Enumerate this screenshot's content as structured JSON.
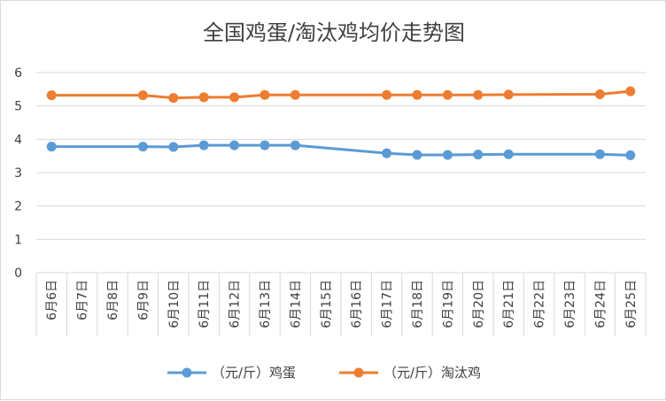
{
  "chart_data": {
    "type": "line",
    "title": "全国鸡蛋/淘汰鸡均价走势图",
    "xlabel": "",
    "ylabel": "",
    "categories": [
      "6月6日",
      "6月7日",
      "6月8日",
      "6月9日",
      "6月10日",
      "6月11日",
      "6月12日",
      "6月13日",
      "6月14日",
      "6月15日",
      "6月16日",
      "6月17日",
      "6月18日",
      "6月19日",
      "6月20日",
      "6月21日",
      "6月22日",
      "6月23日",
      "6月24日",
      "6月25日"
    ],
    "ylim": [
      0,
      6
    ],
    "yticks": [
      0,
      1,
      2,
      3,
      4,
      5,
      6
    ],
    "grid": true,
    "legend_position": "bottom",
    "series": [
      {
        "name": "（元/斤）鸡蛋",
        "color": "#5b9bd5",
        "values": [
          3.78,
          null,
          null,
          3.78,
          3.77,
          3.82,
          3.82,
          3.82,
          3.82,
          null,
          null,
          3.58,
          3.53,
          3.53,
          3.54,
          3.55,
          null,
          null,
          3.55,
          3.52
        ]
      },
      {
        "name": "（元/斤）淘汰鸡",
        "color": "#ed7d31",
        "values": [
          5.32,
          null,
          null,
          5.32,
          5.24,
          5.26,
          5.26,
          5.33,
          5.33,
          null,
          null,
          5.33,
          5.33,
          5.33,
          5.33,
          5.34,
          null,
          null,
          5.35,
          5.44
        ]
      }
    ]
  }
}
